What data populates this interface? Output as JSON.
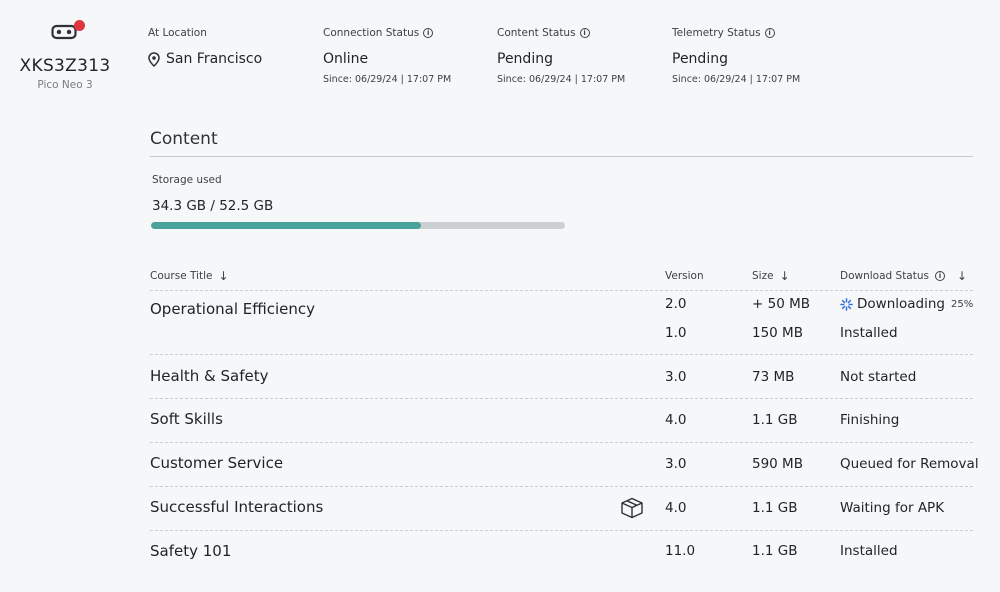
{
  "device": {
    "name": "XKS3Z313",
    "model": "Pico Neo 3",
    "status_color": "#e0373f"
  },
  "status": {
    "location": {
      "label": "At Location",
      "value": "San Francisco"
    },
    "connection": {
      "label": "Connection Status",
      "value": "Online",
      "since": "Since: 06/29/24 | 17:07 PM"
    },
    "content": {
      "label": "Content Status",
      "value": "Pending",
      "since": "Since: 06/29/24 | 17:07 PM"
    },
    "telemetry": {
      "label": "Telemetry Status",
      "value": "Pending",
      "since": "Since: 06/29/24 | 17:07 PM"
    }
  },
  "content": {
    "title": "Content",
    "storage": {
      "label": "Storage used",
      "value": "34.3 GB / 52.5 GB",
      "fraction": 0.653,
      "fill_color": "#4aa39a"
    }
  },
  "table": {
    "headers": {
      "title": "Course Title",
      "version": "Version",
      "size": "Size",
      "download_status": "Download Status"
    },
    "rows": [
      {
        "title": "Operational Efficiency",
        "version": "2.0",
        "size": "+ 50 MB",
        "status": "Downloading",
        "progress": "25%",
        "version2": "1.0",
        "size2": "150 MB",
        "status2": "Installed"
      },
      {
        "title": "Health & Safety",
        "version": "3.0",
        "size": "73 MB",
        "status": "Not started"
      },
      {
        "title": "Soft Skills",
        "version": "4.0",
        "size": "1.1 GB",
        "status": "Finishing"
      },
      {
        "title": "Customer Service",
        "version": "3.0",
        "size": "590 MB",
        "status": "Queued for Removal"
      },
      {
        "title": "Successful Interactions",
        "version": "4.0",
        "size": "1.1 GB",
        "status": "Waiting for APK",
        "icon": "package-icon"
      },
      {
        "title": "Safety 101",
        "version": "11.0",
        "size": "1.1 GB",
        "status": "Installed"
      }
    ]
  }
}
